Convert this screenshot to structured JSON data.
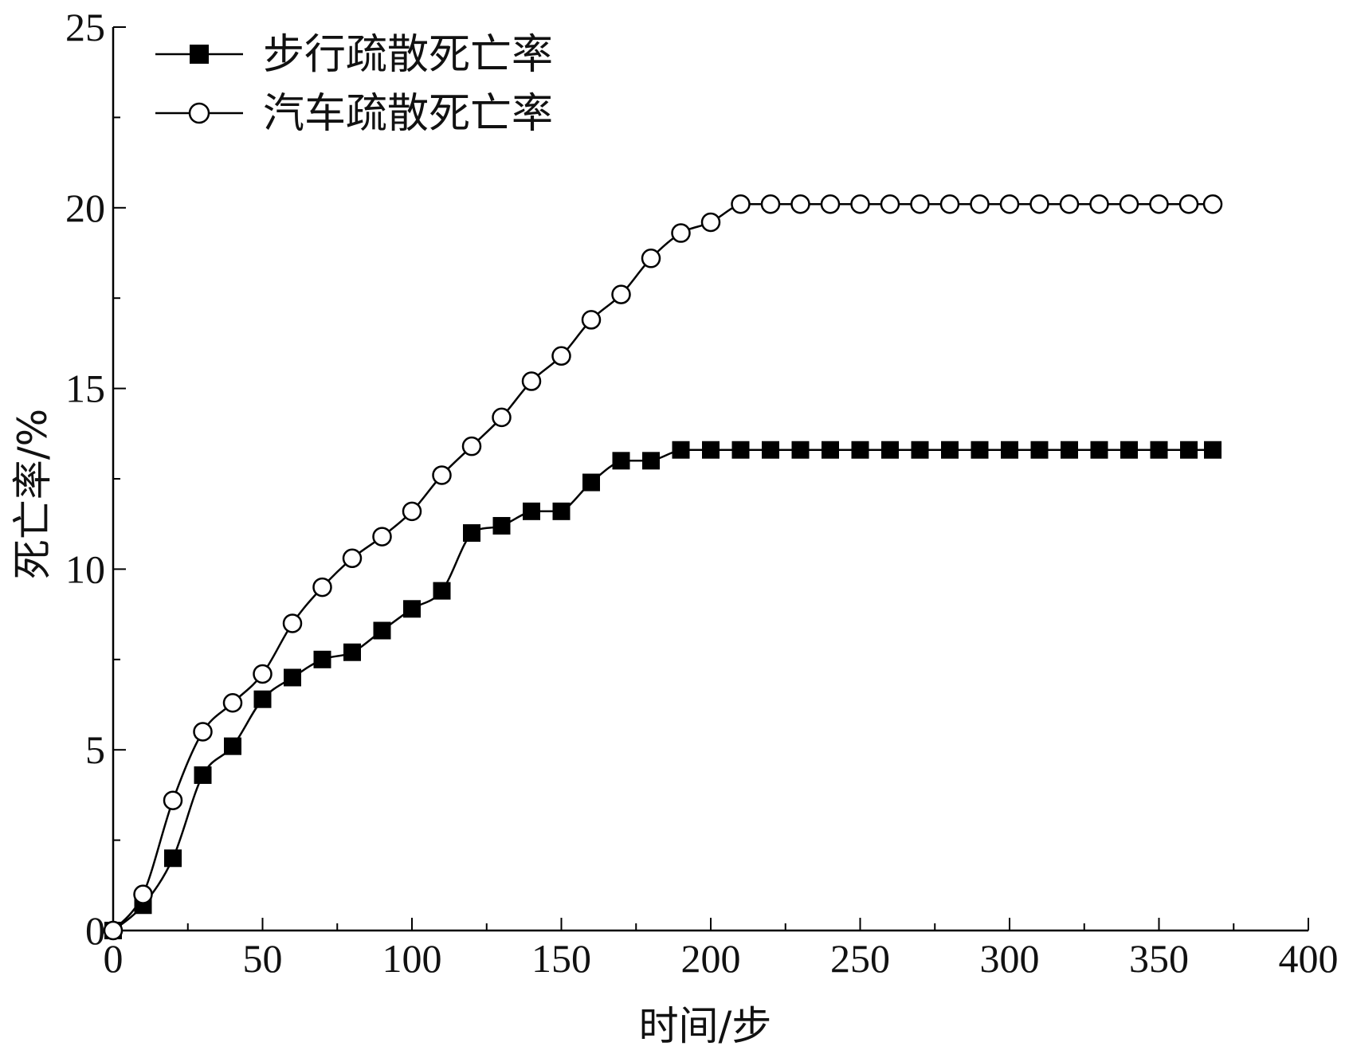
{
  "chart_data": {
    "type": "line",
    "title": "",
    "xlabel": "时间/步",
    "ylabel": "死亡率/%",
    "xlim": [
      0,
      400
    ],
    "ylim": [
      0,
      25
    ],
    "xticks": [
      0,
      50,
      100,
      150,
      200,
      250,
      300,
      350,
      400
    ],
    "yticks": [
      0,
      5,
      10,
      15,
      20,
      25
    ],
    "grid": false,
    "legend_position": "top-left",
    "series": [
      {
        "name": "步行疏散死亡率",
        "marker": "filled-square",
        "color": "#000000",
        "x": [
          0,
          10,
          20,
          30,
          40,
          50,
          60,
          70,
          80,
          90,
          100,
          110,
          120,
          130,
          140,
          150,
          160,
          170,
          180,
          190,
          200,
          210,
          220,
          230,
          240,
          250,
          260,
          270,
          280,
          290,
          300,
          310,
          320,
          330,
          340,
          350,
          360,
          368
        ],
        "values": [
          0,
          0.7,
          2.0,
          4.3,
          5.1,
          6.4,
          7.0,
          7.5,
          7.7,
          8.3,
          8.9,
          9.4,
          11.0,
          11.2,
          11.6,
          11.6,
          12.4,
          13.0,
          13.0,
          13.3,
          13.3,
          13.3,
          13.3,
          13.3,
          13.3,
          13.3,
          13.3,
          13.3,
          13.3,
          13.3,
          13.3,
          13.3,
          13.3,
          13.3,
          13.3,
          13.3,
          13.3,
          13.3
        ]
      },
      {
        "name": "汽车疏散死亡率",
        "marker": "open-circle",
        "color": "#000000",
        "x": [
          0,
          10,
          20,
          30,
          40,
          50,
          60,
          70,
          80,
          90,
          100,
          110,
          120,
          130,
          140,
          150,
          160,
          170,
          180,
          190,
          200,
          210,
          220,
          230,
          240,
          250,
          260,
          270,
          280,
          290,
          300,
          310,
          320,
          330,
          340,
          350,
          360,
          368
        ],
        "values": [
          0,
          1.0,
          3.6,
          5.5,
          6.3,
          7.1,
          8.5,
          9.5,
          10.3,
          10.9,
          11.6,
          12.6,
          13.4,
          14.2,
          15.2,
          15.9,
          16.9,
          17.6,
          18.6,
          19.3,
          19.6,
          20.1,
          20.1,
          20.1,
          20.1,
          20.1,
          20.1,
          20.1,
          20.1,
          20.1,
          20.1,
          20.1,
          20.1,
          20.1,
          20.1,
          20.1,
          20.1,
          20.1
        ]
      }
    ]
  }
}
